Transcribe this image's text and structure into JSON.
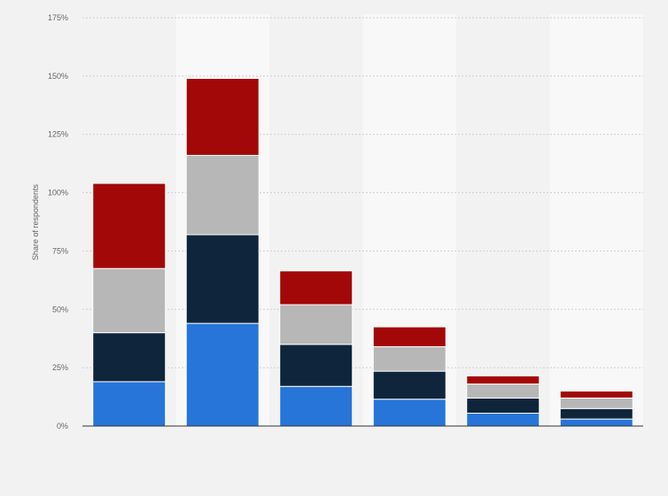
{
  "chart_data": {
    "type": "bar",
    "stacked": true,
    "title": "",
    "xlabel": "",
    "ylabel": "Share of respondents",
    "ylim": [
      0,
      175
    ],
    "y_ticks": [
      "0%",
      "25%",
      "50%",
      "75%",
      "100%",
      "125%",
      "150%",
      "175%"
    ],
    "grid": true,
    "categories": [
      "",
      "",
      "",
      "",
      "",
      ""
    ],
    "series": [
      {
        "color": "#2775d9",
        "values": [
          19,
          44,
          17,
          11.5,
          5.5,
          3
        ]
      },
      {
        "color": "#0f253c",
        "values": [
          21,
          38,
          18,
          12,
          6.5,
          4.5
        ]
      },
      {
        "color": "#b7b7b7",
        "values": [
          27.5,
          34,
          17,
          10.5,
          6,
          4.5
        ]
      },
      {
        "color": "#a30808",
        "values": [
          36.5,
          33,
          14.5,
          8.5,
          3.5,
          3
        ]
      }
    ],
    "band_colors": [
      "#f2f2f2",
      "#f8f8f8"
    ]
  }
}
